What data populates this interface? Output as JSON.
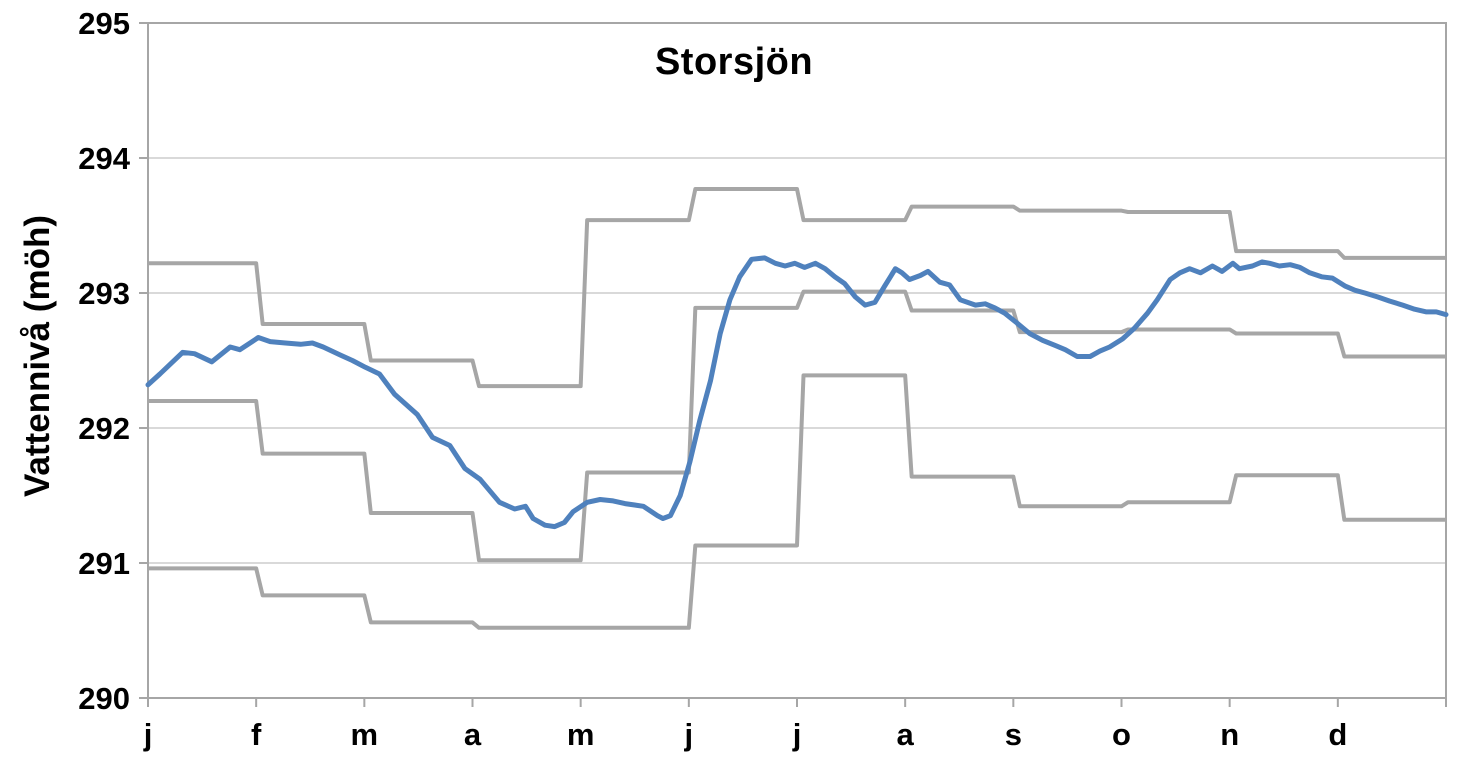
{
  "chart_data": {
    "type": "line",
    "title": "Storsjön",
    "ylabel": "Vattennivå (möh)",
    "ylim": [
      290,
      295
    ],
    "yticks": [
      290,
      291,
      292,
      293,
      294,
      295
    ],
    "x_labels": [
      "j",
      "f",
      "m",
      "a",
      "m",
      "j",
      "j",
      "a",
      "s",
      "o",
      "n",
      "d"
    ],
    "grid": "horizontal",
    "legend": "none",
    "colors": {
      "water_level_line": "#4f81bd",
      "limit_lines": "#a6a6a6",
      "gridline": "#d9d9d9",
      "axis": "#a6a6a6",
      "text": "#000000",
      "background": "#ffffff"
    },
    "step_series": [
      {
        "name": "upper-gray-step-line",
        "monthly_values": [
          293.22,
          292.77,
          292.5,
          292.31,
          293.54,
          293.77,
          293.54,
          293.64,
          293.61,
          293.6,
          293.31,
          293.26
        ]
      },
      {
        "name": "middle-gray-step-line",
        "monthly_values": [
          292.2,
          291.81,
          291.37,
          291.02,
          291.67,
          292.89,
          293.01,
          292.87,
          292.71,
          292.73,
          292.7,
          292.53
        ]
      },
      {
        "name": "lower-gray-step-line",
        "monthly_values": [
          290.96,
          290.76,
          290.56,
          290.52,
          290.52,
          291.13,
          292.39,
          291.64,
          291.42,
          291.45,
          291.65,
          291.32
        ]
      }
    ],
    "line_series": {
      "name": "water-level-blue-line",
      "points": [
        [
          0.0,
          292.32
        ],
        [
          0.11,
          292.4
        ],
        [
          0.32,
          292.56
        ],
        [
          0.43,
          292.55
        ],
        [
          0.59,
          292.49
        ],
        [
          0.76,
          292.6
        ],
        [
          0.85,
          292.58
        ],
        [
          1.02,
          292.67
        ],
        [
          1.13,
          292.64
        ],
        [
          1.27,
          292.63
        ],
        [
          1.41,
          292.62
        ],
        [
          1.52,
          292.63
        ],
        [
          1.62,
          292.6
        ],
        [
          1.78,
          292.54
        ],
        [
          1.89,
          292.5
        ],
        [
          2.01,
          292.45
        ],
        [
          2.14,
          292.4
        ],
        [
          2.28,
          292.25
        ],
        [
          2.49,
          292.1
        ],
        [
          2.63,
          291.93
        ],
        [
          2.79,
          291.87
        ],
        [
          2.93,
          291.7
        ],
        [
          3.07,
          291.62
        ],
        [
          3.25,
          291.45
        ],
        [
          3.39,
          291.4
        ],
        [
          3.49,
          291.42
        ],
        [
          3.56,
          291.33
        ],
        [
          3.67,
          291.28
        ],
        [
          3.76,
          291.27
        ],
        [
          3.85,
          291.3
        ],
        [
          3.93,
          291.38
        ],
        [
          4.06,
          291.45
        ],
        [
          4.18,
          291.47
        ],
        [
          4.3,
          291.46
        ],
        [
          4.41,
          291.44
        ],
        [
          4.58,
          291.42
        ],
        [
          4.71,
          291.35
        ],
        [
          4.76,
          291.33
        ],
        [
          4.83,
          291.35
        ],
        [
          4.92,
          291.5
        ],
        [
          5.01,
          291.75
        ],
        [
          5.1,
          292.05
        ],
        [
          5.2,
          292.35
        ],
        [
          5.29,
          292.7
        ],
        [
          5.38,
          292.95
        ],
        [
          5.47,
          293.12
        ],
        [
          5.58,
          293.25
        ],
        [
          5.7,
          293.26
        ],
        [
          5.8,
          293.22
        ],
        [
          5.89,
          293.2
        ],
        [
          5.98,
          293.22
        ],
        [
          6.07,
          293.19
        ],
        [
          6.17,
          293.22
        ],
        [
          6.26,
          293.18
        ],
        [
          6.35,
          293.12
        ],
        [
          6.44,
          293.07
        ],
        [
          6.54,
          292.97
        ],
        [
          6.63,
          292.91
        ],
        [
          6.72,
          292.93
        ],
        [
          6.81,
          293.05
        ],
        [
          6.91,
          293.18
        ],
        [
          6.97,
          293.15
        ],
        [
          7.04,
          293.1
        ],
        [
          7.14,
          293.13
        ],
        [
          7.21,
          293.16
        ],
        [
          7.32,
          293.08
        ],
        [
          7.41,
          293.06
        ],
        [
          7.51,
          292.95
        ],
        [
          7.65,
          292.91
        ],
        [
          7.74,
          292.92
        ],
        [
          7.83,
          292.89
        ],
        [
          7.92,
          292.85
        ],
        [
          8.03,
          292.78
        ],
        [
          8.15,
          292.7
        ],
        [
          8.27,
          292.65
        ],
        [
          8.39,
          292.61
        ],
        [
          8.48,
          292.58
        ],
        [
          8.59,
          292.53
        ],
        [
          8.71,
          292.53
        ],
        [
          8.8,
          292.57
        ],
        [
          8.89,
          292.6
        ],
        [
          9.01,
          292.66
        ],
        [
          9.12,
          292.74
        ],
        [
          9.24,
          292.85
        ],
        [
          9.33,
          292.95
        ],
        [
          9.45,
          293.1
        ],
        [
          9.54,
          293.15
        ],
        [
          9.63,
          293.18
        ],
        [
          9.73,
          293.15
        ],
        [
          9.84,
          293.2
        ],
        [
          9.93,
          293.16
        ],
        [
          10.03,
          293.22
        ],
        [
          10.09,
          293.18
        ],
        [
          10.21,
          293.2
        ],
        [
          10.3,
          293.23
        ],
        [
          10.37,
          293.22
        ],
        [
          10.46,
          293.2
        ],
        [
          10.56,
          293.21
        ],
        [
          10.65,
          293.19
        ],
        [
          10.74,
          293.15
        ],
        [
          10.85,
          293.12
        ],
        [
          10.95,
          293.11
        ],
        [
          11.07,
          293.05
        ],
        [
          11.16,
          293.02
        ],
        [
          11.25,
          293.0
        ],
        [
          11.37,
          292.97
        ],
        [
          11.48,
          292.94
        ],
        [
          11.6,
          292.91
        ],
        [
          11.71,
          292.88
        ],
        [
          11.82,
          292.86
        ],
        [
          11.91,
          292.86
        ],
        [
          12.0,
          292.84
        ]
      ]
    }
  }
}
